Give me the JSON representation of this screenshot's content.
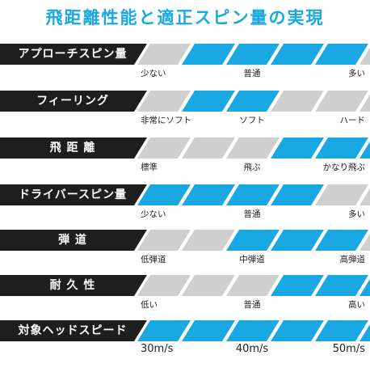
{
  "title": "飛距離性能と適正スピン量の実現",
  "colors": {
    "accent": "#1aa8e2",
    "off": "#cfcfcf",
    "label_bg": "#1e1e1e"
  },
  "rows": [
    {
      "label": "アプローチスピン量",
      "active": [
        false,
        true,
        true,
        true,
        true,
        false
      ],
      "scale": [
        "少ない",
        "普通",
        "多い"
      ]
    },
    {
      "label": "フィーリング",
      "active": [
        false,
        true,
        true,
        false,
        false,
        false
      ],
      "scale": [
        "非常にソフト",
        "ソフト",
        "ハード"
      ]
    },
    {
      "label": "飛 距 離",
      "active": [
        false,
        false,
        false,
        true,
        true,
        true
      ],
      "scale": [
        "標準",
        "飛ぶ",
        "かなり飛ぶ"
      ]
    },
    {
      "label": "ドライバースピン量",
      "active": [
        true,
        true,
        true,
        true,
        false,
        false
      ],
      "scale": [
        "少ない",
        "普通",
        "多い"
      ]
    },
    {
      "label": "弾 道",
      "active": [
        false,
        false,
        true,
        true,
        true,
        false
      ],
      "scale": [
        "低弾道",
        "中弾道",
        "高弾道"
      ]
    },
    {
      "label": "耐 久 性",
      "active": [
        false,
        false,
        false,
        true,
        true,
        true
      ],
      "scale": [
        "低い",
        "普通",
        "高い"
      ]
    },
    {
      "label": "対象ヘッドスピード",
      "active": [
        true,
        true,
        true,
        true,
        true,
        true
      ],
      "scale": [
        "30m/s",
        "40m/s",
        "50m/s"
      ]
    }
  ]
}
